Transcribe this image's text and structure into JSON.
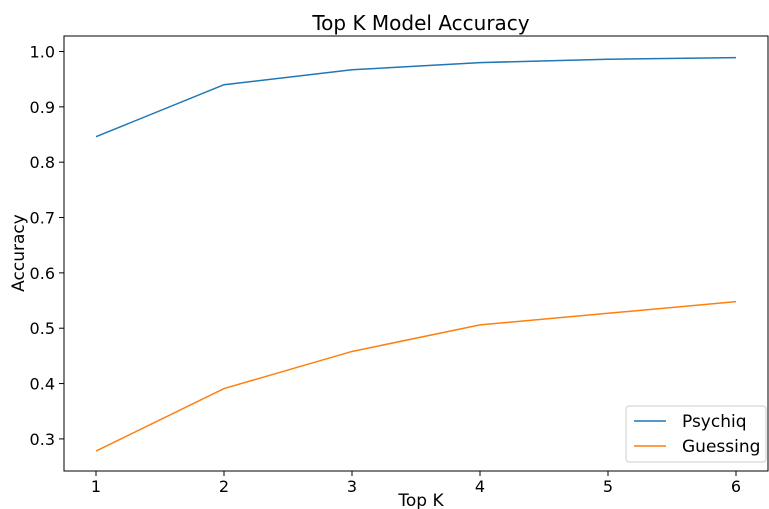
{
  "chart_data": {
    "type": "line",
    "title": "Top K Model Accuracy",
    "xlabel": "Top K",
    "ylabel": "Accuracy",
    "x": [
      1,
      2,
      3,
      4,
      5,
      6
    ],
    "xticks": [
      "1",
      "2",
      "3",
      "4",
      "5",
      "6"
    ],
    "yticks": [
      "0.3",
      "0.4",
      "0.5",
      "0.6",
      "0.7",
      "0.8",
      "0.9",
      "1.0"
    ],
    "xlim": [
      0.75,
      6.25
    ],
    "ylim": [
      0.242,
      1.028
    ],
    "grid": false,
    "legend_position": "lower-right",
    "series": [
      {
        "name": "Psychiq",
        "color": "#1f77b4",
        "values": [
          0.846,
          0.94,
          0.967,
          0.98,
          0.986,
          0.989
        ]
      },
      {
        "name": "Guessing",
        "color": "#ff7f0e",
        "values": [
          0.278,
          0.391,
          0.458,
          0.506,
          0.527,
          0.548
        ]
      }
    ]
  }
}
